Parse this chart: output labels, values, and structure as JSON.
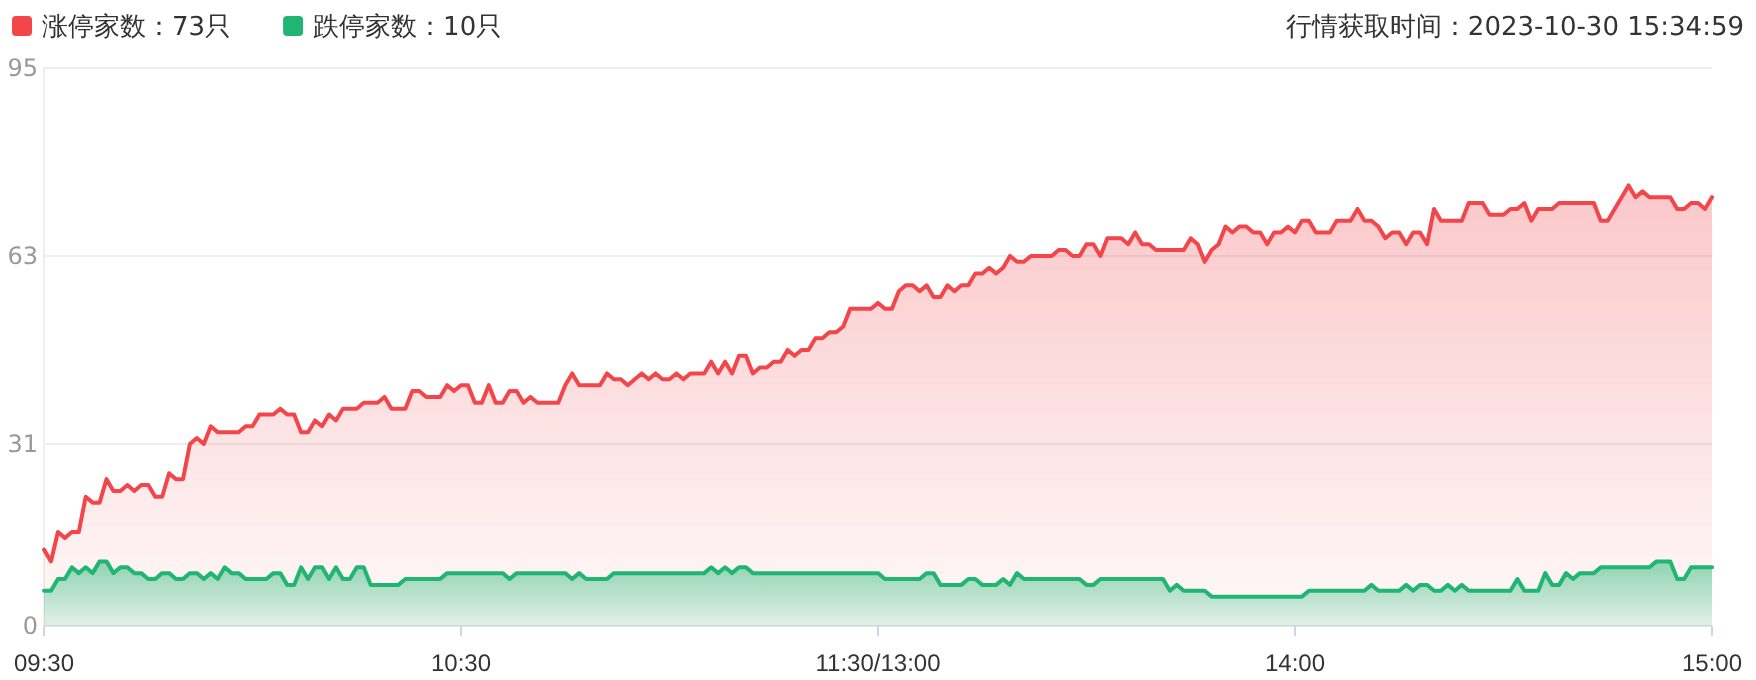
{
  "chart_data": {
    "type": "area",
    "annotations": [
      "行情获取时间：2023-10-30 15:34:59"
    ],
    "categories": [
      "09:30",
      null,
      null,
      null,
      null,
      null,
      null,
      null,
      null,
      null,
      null,
      null,
      null,
      null,
      null,
      null,
      null,
      null,
      null,
      null,
      null,
      null,
      null,
      null,
      null,
      null,
      null,
      null,
      null,
      null,
      null,
      null,
      null,
      null,
      null,
      null,
      null,
      null,
      null,
      null,
      null,
      null,
      null,
      null,
      null,
      null,
      null,
      null,
      null,
      null,
      null,
      null,
      null,
      null,
      null,
      null,
      null,
      null,
      null,
      null,
      "10:30",
      null,
      null,
      null,
      null,
      null,
      null,
      null,
      null,
      null,
      null,
      null,
      null,
      null,
      null,
      null,
      null,
      null,
      null,
      null,
      null,
      null,
      null,
      null,
      null,
      null,
      null,
      null,
      null,
      null,
      null,
      null,
      null,
      null,
      null,
      null,
      null,
      null,
      null,
      null,
      null,
      null,
      null,
      null,
      null,
      null,
      null,
      null,
      null,
      null,
      null,
      null,
      null,
      null,
      null,
      null,
      null,
      null,
      null,
      null,
      "11:30/13:00",
      null,
      null,
      null,
      null,
      null,
      null,
      null,
      null,
      null,
      null,
      null,
      null,
      null,
      null,
      null,
      null,
      null,
      null,
      null,
      null,
      null,
      null,
      null,
      null,
      null,
      null,
      null,
      null,
      null,
      null,
      null,
      null,
      null,
      null,
      null,
      null,
      null,
      null,
      null,
      null,
      null,
      null,
      null,
      null,
      null,
      null,
      null,
      null,
      null,
      null,
      null,
      null,
      null,
      null,
      null,
      null,
      null,
      null,
      null,
      "14:00",
      null,
      null,
      null,
      null,
      null,
      null,
      null,
      null,
      null,
      null,
      null,
      null,
      null,
      null,
      null,
      null,
      null,
      null,
      null,
      null,
      null,
      null,
      null,
      null,
      null,
      null,
      null,
      null,
      null,
      null,
      null,
      null,
      null,
      null,
      null,
      null,
      null,
      null,
      null,
      null,
      null,
      null,
      null,
      null,
      null,
      null,
      null,
      null,
      null,
      null,
      null,
      null,
      null,
      null,
      null,
      null,
      null,
      null,
      null,
      "15:00"
    ],
    "ylim": [
      0,
      95
    ],
    "yticks": [
      0,
      31,
      63,
      95
    ],
    "grid": "y",
    "legend": "top left",
    "marker": "none",
    "line_style": "solid",
    "series": [
      {
        "name": "涨停家数：73只",
        "color": "#f2464b",
        "values": [
          13,
          11,
          16,
          15,
          16,
          16,
          22,
          21,
          21,
          25,
          23,
          23,
          24,
          23,
          24,
          24,
          22,
          22,
          26,
          25,
          25,
          31,
          32,
          31,
          34,
          33,
          33,
          33,
          33,
          34,
          34,
          36,
          36,
          36,
          37,
          36,
          36,
          33,
          33,
          35,
          34,
          36,
          35,
          37,
          37,
          37,
          38,
          38,
          38,
          39,
          37,
          37,
          37,
          40,
          40,
          39,
          39,
          39,
          41,
          40,
          41,
          41,
          38,
          38,
          41,
          38,
          38,
          40,
          40,
          38,
          39,
          38,
          38,
          38,
          38,
          41,
          43,
          41,
          41,
          41,
          41,
          43,
          42,
          42,
          41,
          42,
          43,
          42,
          43,
          42,
          42,
          43,
          42,
          43,
          43,
          43,
          45,
          43,
          45,
          43,
          46,
          46,
          43,
          44,
          44,
          45,
          45,
          47,
          46,
          47,
          47,
          49,
          49,
          50,
          50,
          51,
          54,
          54,
          54,
          54,
          55,
          54,
          54,
          57,
          58,
          58,
          57,
          58,
          56,
          56,
          58,
          57,
          58,
          58,
          60,
          60,
          61,
          60,
          61,
          63,
          62,
          62,
          63,
          63,
          63,
          63,
          64,
          64,
          63,
          63,
          65,
          65,
          63,
          66,
          66,
          66,
          65,
          67,
          65,
          65,
          64,
          64,
          64,
          64,
          64,
          66,
          65,
          62,
          64,
          65,
          68,
          67,
          68,
          68,
          67,
          67,
          65,
          67,
          67,
          68,
          67,
          69,
          69,
          67,
          67,
          67,
          69,
          69,
          69,
          71,
          69,
          69,
          68,
          66,
          67,
          67,
          65,
          67,
          67,
          65,
          71,
          69,
          69,
          69,
          69,
          72,
          72,
          72,
          70,
          70,
          70,
          71,
          71,
          72,
          69,
          71,
          71,
          71,
          72,
          72,
          72,
          72,
          72,
          72,
          69,
          69,
          71,
          73,
          75,
          73,
          74,
          73,
          73,
          73,
          73,
          71,
          71,
          72,
          72,
          71,
          73
        ]
      },
      {
        "name": "跌停家数：10只",
        "color": "#20b573",
        "values": [
          6,
          6,
          8,
          8,
          10,
          9,
          10,
          9,
          11,
          11,
          9,
          10,
          10,
          9,
          9,
          8,
          8,
          9,
          9,
          8,
          8,
          9,
          9,
          8,
          9,
          8,
          10,
          9,
          9,
          8,
          8,
          8,
          8,
          9,
          9,
          7,
          7,
          10,
          8,
          10,
          10,
          8,
          10,
          8,
          8,
          10,
          10,
          7,
          7,
          7,
          7,
          7,
          8,
          8,
          8,
          8,
          8,
          8,
          9,
          9,
          9,
          9,
          9,
          9,
          9,
          9,
          9,
          8,
          9,
          9,
          9,
          9,
          9,
          9,
          9,
          9,
          8,
          9,
          8,
          8,
          8,
          8,
          9,
          9,
          9,
          9,
          9,
          9,
          9,
          9,
          9,
          9,
          9,
          9,
          9,
          9,
          10,
          9,
          10,
          9,
          10,
          10,
          9,
          9,
          9,
          9,
          9,
          9,
          9,
          9,
          9,
          9,
          9,
          9,
          9,
          9,
          9,
          9,
          9,
          9,
          9,
          8,
          8,
          8,
          8,
          8,
          8,
          9,
          9,
          7,
          7,
          7,
          7,
          8,
          8,
          7,
          7,
          7,
          8,
          7,
          9,
          8,
          8,
          8,
          8,
          8,
          8,
          8,
          8,
          8,
          7,
          7,
          8,
          8,
          8,
          8,
          8,
          8,
          8,
          8,
          8,
          8,
          6,
          7,
          6,
          6,
          6,
          6,
          5,
          5,
          5,
          5,
          5,
          5,
          5,
          5,
          5,
          5,
          5,
          5,
          5,
          5,
          6,
          6,
          6,
          6,
          6,
          6,
          6,
          6,
          6,
          7,
          6,
          6,
          6,
          6,
          7,
          6,
          7,
          7,
          6,
          6,
          7,
          6,
          7,
          6,
          6,
          6,
          6,
          6,
          6,
          6,
          8,
          6,
          6,
          6,
          9,
          7,
          7,
          9,
          8,
          9,
          9,
          9,
          10,
          10,
          10,
          10,
          10,
          10,
          10,
          10,
          11,
          11,
          11,
          8,
          8,
          10,
          10,
          10,
          10
        ]
      }
    ]
  }
}
